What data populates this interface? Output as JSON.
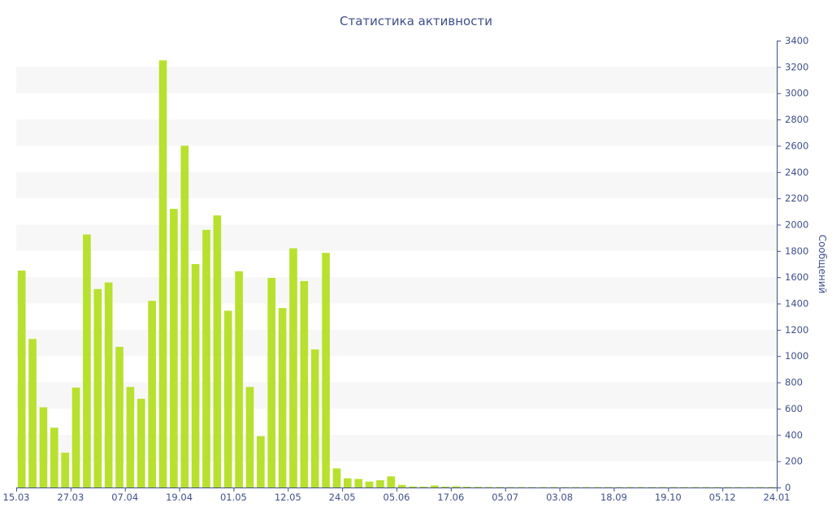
{
  "chart_data": {
    "type": "bar",
    "title": "Статистика активности",
    "xlabel": "",
    "ylabel": "Сообщений",
    "ylim": [
      0,
      3400
    ],
    "yticks": [
      0,
      200,
      400,
      600,
      800,
      1000,
      1200,
      1400,
      1600,
      1800,
      2000,
      2200,
      2400,
      2600,
      2800,
      3000,
      3200,
      3400
    ],
    "y_axis_side": "right",
    "grid": "alternating horizontal bands",
    "x_tick_labels": [
      "15.03",
      "27.03",
      "07.04",
      "19.04",
      "01.05",
      "12.05",
      "24.05",
      "05.06",
      "17.06",
      "05.07",
      "03.08",
      "18.09",
      "19.10",
      "05.12",
      "24.01"
    ],
    "values": [
      1650,
      1130,
      610,
      455,
      265,
      760,
      1925,
      1510,
      1560,
      1070,
      765,
      675,
      1420,
      3250,
      2120,
      2600,
      1700,
      1960,
      2070,
      1345,
      1645,
      765,
      390,
      1595,
      1365,
      1820,
      1570,
      1050,
      1785,
      145,
      70,
      65,
      45,
      55,
      85,
      20,
      8,
      6,
      15,
      7,
      9,
      6,
      5,
      4,
      4,
      3,
      3,
      3,
      3,
      3,
      3,
      3,
      3,
      3,
      3,
      3,
      3,
      3,
      3,
      3,
      3,
      3,
      3,
      3,
      3,
      3,
      3,
      3,
      3,
      3
    ],
    "colors": {
      "bar": "#b8e02e",
      "band": "#f7f7f7",
      "text": "#3f4f8c",
      "axis": "#3f4f8c"
    }
  }
}
